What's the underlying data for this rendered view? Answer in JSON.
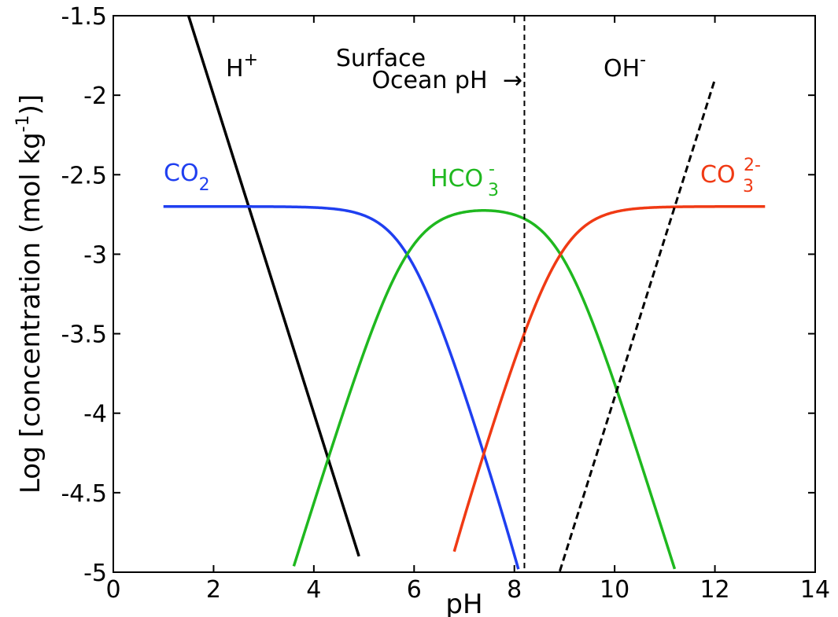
{
  "chart_data": {
    "type": "line",
    "title": "",
    "xlabel": "pH",
    "ylabel": "Log [concentration (mol kg",
    "ylabel_sup": "-1",
    "ylabel_close": ")]",
    "xlim": [
      0,
      14
    ],
    "ylim": [
      -5,
      -1.5
    ],
    "xticks": [
      0,
      2,
      4,
      6,
      8,
      10,
      12,
      14
    ],
    "yticks": [
      -1.5,
      -2,
      -2.5,
      -3,
      -3.5,
      -4,
      -4.5,
      -5
    ],
    "xtick_labels": [
      "0",
      "2",
      "4",
      "6",
      "8",
      "10",
      "12",
      "14"
    ],
    "ytick_labels": [
      "-1.5",
      "-2",
      "-2.5",
      "-3",
      "-3.5",
      "-4",
      "-4.5",
      "-5"
    ],
    "grid": false,
    "pK1": 5.86,
    "pK2": 8.92,
    "pKw": 13.9,
    "total_log_dic": -2.7,
    "surface_ph": 8.2,
    "series": [
      {
        "key": "h",
        "color": "#000000",
        "dashed": false,
        "x_range": [
          1.5,
          4.9
        ]
      },
      {
        "key": "co2",
        "color": "#1f3ff0",
        "dashed": false,
        "x_range": [
          1.0,
          8.2
        ]
      },
      {
        "key": "hco3",
        "color": "#1fb81f",
        "dashed": false,
        "x_range": [
          3.6,
          11.3
        ]
      },
      {
        "key": "co3",
        "color": "#f03a14",
        "dashed": false,
        "x_range": [
          6.8,
          13.0
        ]
      },
      {
        "key": "oh",
        "color": "#000000",
        "dashed": true,
        "x_range": [
          8.6,
          12.0
        ]
      }
    ],
    "annotations": {
      "h": {
        "base": "H",
        "sup": "+",
        "color": "#000000"
      },
      "oh": {
        "base": "OH",
        "sup": "-",
        "color": "#000000"
      },
      "co2": {
        "base": "CO",
        "sub": "2",
        "color": "#1f3ff0"
      },
      "hco3": {
        "base": "HCO",
        "sub": "3",
        "sup": "-",
        "color": "#1fb81f"
      },
      "co3": {
        "base": "CO",
        "sub": "3",
        "sup": "2-",
        "color": "#f03a14"
      },
      "surface_line1": "Surface",
      "surface_line2": "Ocean pH",
      "arrow": "→"
    }
  }
}
